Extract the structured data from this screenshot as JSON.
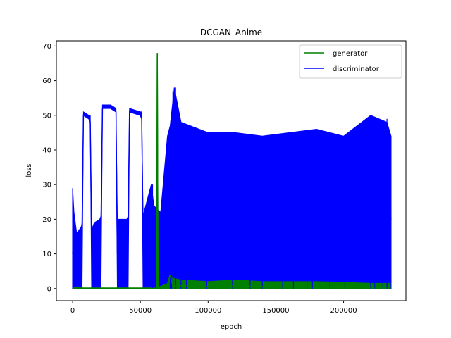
{
  "chart_data": {
    "type": "line",
    "title": "DCGAN_Anime",
    "xlabel": "epoch",
    "ylabel": "loss",
    "xlim": [
      -12000,
      246000
    ],
    "ylim": [
      -3.5,
      71.5
    ],
    "xticks": [
      0,
      50000,
      100000,
      150000,
      200000
    ],
    "xtick_labels": [
      "0",
      "50000",
      "100000",
      "150000",
      "200000"
    ],
    "yticks": [
      0,
      10,
      20,
      30,
      40,
      50,
      60,
      70
    ],
    "ytick_labels": [
      "0",
      "10",
      "20",
      "30",
      "40",
      "50",
      "60",
      "70"
    ],
    "legend_position": "upper right",
    "grid": false,
    "series": [
      {
        "name": "generator",
        "color": "#008000",
        "x": [
          0,
          8000,
          20000,
          40000,
          55000,
          62000,
          62500,
          63000,
          64000,
          70000,
          72000,
          74000,
          80000,
          100000,
          120000,
          140000,
          160000,
          180000,
          200000,
          220000,
          235000
        ],
        "values": [
          0,
          0,
          0,
          0,
          0,
          0,
          68,
          0.2,
          0,
          0.2,
          4,
          0.6,
          0.8,
          0.6,
          0.7,
          0.6,
          0.5,
          0.5,
          0.5,
          0.4,
          0.4
        ],
        "band_low": [
          0,
          0,
          0,
          0,
          0,
          0,
          0,
          0,
          0,
          0,
          0,
          0,
          0,
          0,
          0,
          0,
          0,
          0,
          0,
          0,
          0
        ],
        "band_high": [
          0.3,
          0.2,
          0.2,
          0.2,
          0.2,
          0.2,
          68,
          1,
          0.5,
          1.5,
          4.2,
          3,
          2.5,
          2,
          2.5,
          2,
          2,
          2,
          1.8,
          1.5,
          1.5
        ]
      },
      {
        "name": "discriminator",
        "color": "#0000ff",
        "x": [
          0,
          1000,
          3000,
          5000,
          6500,
          7000,
          8000,
          12000,
          13000,
          14000,
          16000,
          20000,
          21000,
          22000,
          28000,
          32000,
          33000,
          36000,
          40000,
          41000,
          42000,
          50000,
          51000,
          52000,
          58000,
          60000,
          62000,
          65000,
          70000,
          72000,
          75000,
          80000,
          100000,
          120000,
          140000,
          160000,
          180000,
          200000,
          220000,
          232000,
          235000
        ],
        "values": [
          10,
          20,
          12,
          13,
          15,
          19,
          50,
          49,
          48,
          14,
          15,
          16,
          20,
          52,
          52,
          51,
          10,
          18,
          19,
          20,
          51,
          50,
          49,
          15,
          18,
          19,
          20,
          20,
          21,
          40,
          40,
          38,
          36,
          36,
          37,
          37,
          36,
          37,
          37,
          38,
          20
        ],
        "band_low": [
          0,
          0,
          0,
          0,
          0,
          0,
          50,
          49,
          48,
          0,
          0,
          0,
          0,
          52,
          52,
          51,
          0,
          0,
          0,
          0,
          51,
          50,
          49,
          0,
          0,
          0,
          0,
          0,
          0,
          0,
          0,
          0,
          0,
          0,
          0,
          0,
          0,
          0,
          0,
          0,
          0
        ],
        "band_high": [
          29,
          22,
          16,
          17,
          18,
          19,
          51,
          50,
          50,
          17,
          19,
          20,
          21,
          53,
          53,
          52,
          20,
          20,
          20,
          21,
          52,
          51,
          51,
          21,
          30,
          24,
          23,
          22,
          44,
          47,
          58,
          48,
          45,
          45,
          44,
          45,
          46,
          44,
          50,
          48,
          44
        ]
      }
    ],
    "spikes": [
      {
        "series": "discriminator",
        "x": 0,
        "y": 28.8
      },
      {
        "series": "discriminator",
        "x": 59000,
        "y": 30
      },
      {
        "series": "discriminator",
        "x": 72000,
        "y": 44
      },
      {
        "series": "discriminator",
        "x": 73000,
        "y": 42
      },
      {
        "series": "discriminator",
        "x": 74000,
        "y": 57
      },
      {
        "series": "discriminator",
        "x": 76000,
        "y": 58
      },
      {
        "series": "discriminator",
        "x": 80000,
        "y": 46
      },
      {
        "series": "discriminator",
        "x": 84000,
        "y": 43
      },
      {
        "series": "discriminator",
        "x": 99000,
        "y": 38
      },
      {
        "series": "discriminator",
        "x": 118000,
        "y": 36
      },
      {
        "series": "discriminator",
        "x": 131000,
        "y": 38
      },
      {
        "series": "discriminator",
        "x": 140000,
        "y": 40
      },
      {
        "series": "discriminator",
        "x": 155000,
        "y": 44
      },
      {
        "series": "discriminator",
        "x": 163000,
        "y": 44
      },
      {
        "series": "discriminator",
        "x": 173000,
        "y": 44
      },
      {
        "series": "discriminator",
        "x": 177000,
        "y": 44
      },
      {
        "series": "discriminator",
        "x": 190000,
        "y": 45
      },
      {
        "series": "discriminator",
        "x": 201000,
        "y": 42
      },
      {
        "series": "discriminator",
        "x": 220000,
        "y": 50
      },
      {
        "series": "discriminator",
        "x": 223000,
        "y": 47
      },
      {
        "series": "discriminator",
        "x": 229000,
        "y": 44
      },
      {
        "series": "discriminator",
        "x": 232000,
        "y": 49
      },
      {
        "series": "discriminator",
        "x": 235000,
        "y": 44
      }
    ]
  }
}
